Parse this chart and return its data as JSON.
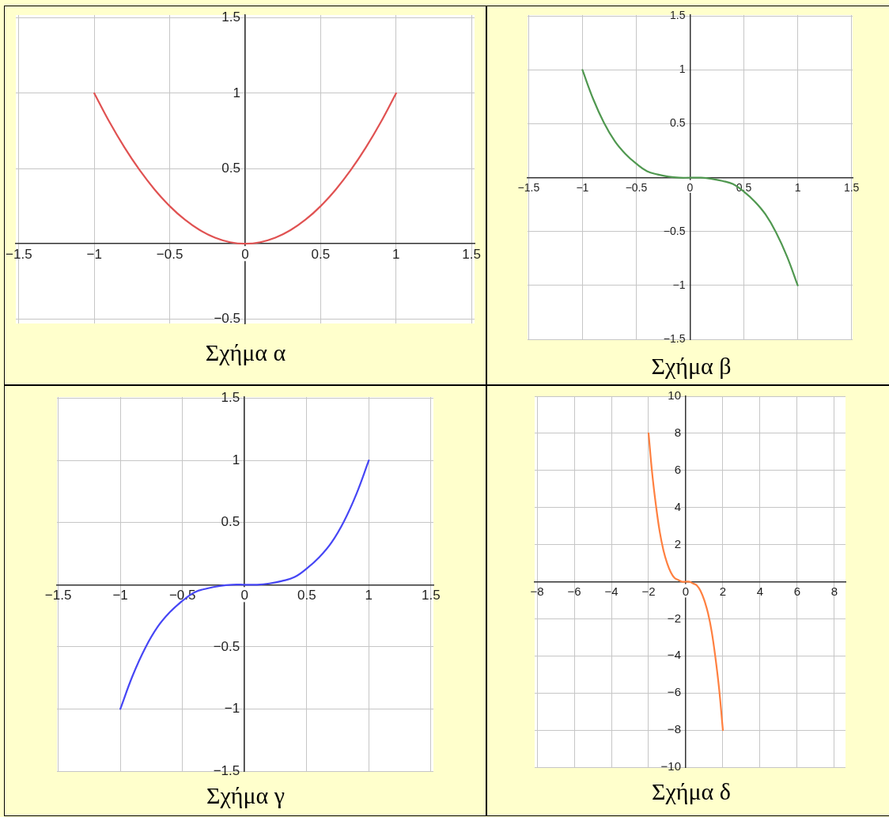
{
  "chart_data": [
    {
      "type": "line",
      "title": "Σχήμα α",
      "x": [
        -1,
        -0.9,
        -0.8,
        -0.7,
        -0.6,
        -0.5,
        -0.4,
        -0.3,
        -0.2,
        -0.1,
        0,
        0.1,
        0.2,
        0.3,
        0.4,
        0.5,
        0.6,
        0.7,
        0.8,
        0.9,
        1
      ],
      "values": [
        1,
        0.81,
        0.64,
        0.49,
        0.36,
        0.25,
        0.16,
        0.09,
        0.04,
        0.01,
        0,
        0.01,
        0.04,
        0.09,
        0.16,
        0.25,
        0.36,
        0.49,
        0.64,
        0.81,
        1
      ],
      "color": "#e05252",
      "xlim": [
        -1.52,
        1.52
      ],
      "ylim": [
        -0.53,
        1.52
      ],
      "xticks": [
        {
          "value": -1.5,
          "label": "−1.5"
        },
        {
          "value": -1,
          "label": "−1"
        },
        {
          "value": -0.5,
          "label": "−0.5"
        },
        0,
        0.5,
        1,
        1.5
      ],
      "yticks": [
        {
          "value": -0.5,
          "label": "−0.5"
        },
        0.5,
        1,
        1.5
      ],
      "grid": true
    },
    {
      "type": "line",
      "title": "Σχήμα β",
      "x": [
        -1,
        -0.9,
        -0.8,
        -0.7,
        -0.6,
        -0.5,
        -0.4,
        -0.3,
        -0.2,
        -0.1,
        0,
        0.1,
        0.2,
        0.3,
        0.4,
        0.5,
        0.6,
        0.7,
        0.8,
        0.9,
        1
      ],
      "values": [
        1,
        0.73,
        0.51,
        0.34,
        0.22,
        0.13,
        0.06,
        0.03,
        0.01,
        0,
        0,
        0,
        -0.01,
        -0.03,
        -0.06,
        -0.13,
        -0.22,
        -0.34,
        -0.51,
        -0.73,
        -1
      ],
      "color": "#509850",
      "xlim": [
        -1.51,
        1.51
      ],
      "ylim": [
        -1.5,
        1.51
      ],
      "xticks": [
        {
          "value": -1.5,
          "label": "−1.5"
        },
        {
          "value": -1,
          "label": "−1"
        },
        {
          "value": -0.5,
          "label": "−0.5"
        },
        0,
        0.5,
        1,
        1.5
      ],
      "yticks": [
        {
          "value": -1.5,
          "label": "−1.5"
        },
        {
          "value": -1,
          "label": "−1"
        },
        {
          "value": -0.5,
          "label": "−0.5"
        },
        0.5,
        1,
        1.5
      ],
      "grid": true
    },
    {
      "type": "line",
      "title": "Σχήμα γ",
      "x": [
        -1,
        -0.9,
        -0.8,
        -0.7,
        -0.6,
        -0.5,
        -0.4,
        -0.3,
        -0.2,
        -0.1,
        0,
        0.1,
        0.2,
        0.3,
        0.4,
        0.5,
        0.6,
        0.7,
        0.8,
        0.9,
        1
      ],
      "values": [
        -1,
        -0.73,
        -0.51,
        -0.34,
        -0.22,
        -0.13,
        -0.06,
        -0.03,
        -0.01,
        0,
        0,
        0,
        0.01,
        0.03,
        0.06,
        0.13,
        0.22,
        0.34,
        0.51,
        0.73,
        1
      ],
      "color": "#4646f5",
      "xlim": [
        -1.51,
        1.52
      ],
      "ylim": [
        -1.5,
        1.51
      ],
      "xticks": [
        {
          "value": -1.5,
          "label": "−1.5"
        },
        {
          "value": -1,
          "label": "−1"
        },
        {
          "value": -0.5,
          "label": "−0.5"
        },
        0,
        0.5,
        1,
        1.5
      ],
      "yticks": [
        {
          "value": -1.5,
          "label": "−1.5"
        },
        {
          "value": -1,
          "label": "−1"
        },
        {
          "value": -0.5,
          "label": "−0.5"
        },
        0.5,
        1,
        1.5
      ],
      "grid": true
    },
    {
      "type": "line",
      "title": "Σχήμα δ",
      "x": [
        -2,
        -1.8,
        -1.6,
        -1.4,
        -1.2,
        -1,
        -0.8,
        -0.6,
        -0.4,
        -0.2,
        0,
        0.2,
        0.4,
        0.6,
        0.8,
        1,
        1.2,
        1.4,
        1.6,
        1.8,
        2
      ],
      "values": [
        8,
        5.8,
        4.1,
        2.7,
        1.7,
        1,
        0.5,
        0.2,
        0.1,
        0,
        0,
        0,
        -0.1,
        -0.2,
        -0.5,
        -1,
        -1.7,
        -2.7,
        -4.1,
        -5.8,
        -8
      ],
      "color": "#ff8040",
      "xlim": [
        -8.13,
        8.6
      ],
      "ylim": [
        -10,
        10
      ],
      "xticks": [
        {
          "value": -8,
          "label": "−8"
        },
        {
          "value": -6,
          "label": "−6"
        },
        {
          "value": -4,
          "label": "−4"
        },
        {
          "value": -2,
          "label": "−2"
        },
        0,
        2,
        4,
        6,
        8
      ],
      "yticks": [
        {
          "value": -10,
          "label": "−10"
        },
        {
          "value": -8,
          "label": "−8"
        },
        {
          "value": -6,
          "label": "−6"
        },
        {
          "value": -4,
          "label": "−4"
        },
        {
          "value": -2,
          "label": "−2"
        },
        2,
        4,
        6,
        8,
        10
      ],
      "grid": true
    }
  ]
}
